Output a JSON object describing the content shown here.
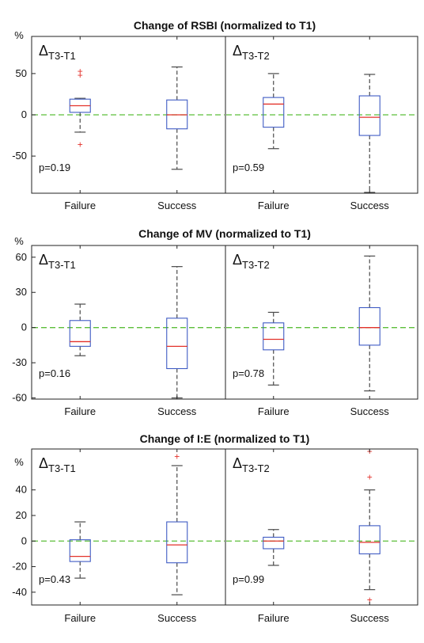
{
  "chart_data": [
    {
      "type": "box",
      "title": "Change of RSBI (normalized to T1)",
      "ylabel": "%",
      "ylim": [
        -95,
        95
      ],
      "yticks": [
        -50,
        0,
        50
      ],
      "ytick_labels": [
        "-50",
        "0",
        "50"
      ],
      "categories": [
        "Failure",
        "Success"
      ],
      "reference_line": 0,
      "panels": [
        {
          "label_main": "Δ",
          "label_sub": "T3-T1",
          "pvalue": "p=0.19",
          "boxes": [
            {
              "category": "Failure",
              "whisker_low": -21,
              "q1": 3,
              "median": 11,
              "q3": 19,
              "whisker_high": 20,
              "outliers": [
                -36,
                48,
                53
              ]
            },
            {
              "category": "Success",
              "whisker_low": -66,
              "q1": -17,
              "median": 0,
              "q3": 18,
              "whisker_high": 58,
              "outliers": []
            }
          ]
        },
        {
          "label_main": "Δ",
          "label_sub": "T3-T2",
          "pvalue": "p=0.59",
          "boxes": [
            {
              "category": "Failure",
              "whisker_low": -41,
              "q1": -15,
              "median": 13,
              "q3": 21,
              "whisker_high": 50,
              "outliers": []
            },
            {
              "category": "Success",
              "whisker_low": -94,
              "q1": -25,
              "median": -3,
              "q3": 23,
              "whisker_high": 49,
              "outliers": []
            }
          ]
        }
      ]
    },
    {
      "type": "box",
      "title": "Change of MV (normalized to T1)",
      "ylabel": "%",
      "ylim": [
        -61,
        70
      ],
      "yticks": [
        -60,
        -30,
        0,
        30,
        60
      ],
      "ytick_labels": [
        "-60",
        "-30",
        "0",
        "30",
        "60"
      ],
      "categories": [
        "Failure",
        "Success"
      ],
      "reference_line": 0,
      "panels": [
        {
          "label_main": "Δ",
          "label_sub": "T3-T1",
          "pvalue": "p=0.16",
          "boxes": [
            {
              "category": "Failure",
              "whisker_low": -24,
              "q1": -16,
              "median": -12,
              "q3": 6,
              "whisker_high": 20,
              "outliers": []
            },
            {
              "category": "Success",
              "whisker_low": -60,
              "q1": -35,
              "median": -16,
              "q3": 8,
              "whisker_high": 52,
              "outliers": []
            }
          ]
        },
        {
          "label_main": "Δ",
          "label_sub": "T3-T2",
          "pvalue": "p=0.78",
          "boxes": [
            {
              "category": "Failure",
              "whisker_low": -49,
              "q1": -19,
              "median": -10,
              "q3": 4,
              "whisker_high": 13,
              "outliers": []
            },
            {
              "category": "Success",
              "whisker_low": -54,
              "q1": -15,
              "median": 0,
              "q3": 17,
              "whisker_high": 61,
              "outliers": []
            }
          ]
        }
      ]
    },
    {
      "type": "box",
      "title": "Change of I:E (normalized to T1)",
      "ylabel": "%",
      "ylim": [
        -50,
        72
      ],
      "yticks": [
        -40,
        -20,
        0,
        20,
        40
      ],
      "ytick_labels": [
        "-40",
        "-20",
        "0",
        "20",
        "40"
      ],
      "categories": [
        "Failure",
        "Success"
      ],
      "reference_line": 0,
      "panels": [
        {
          "label_main": "Δ",
          "label_sub": "T3-T1",
          "pvalue": "p=0.43",
          "boxes": [
            {
              "category": "Failure",
              "whisker_low": -29,
              "q1": -16,
              "median": -12,
              "q3": 1,
              "whisker_high": 15,
              "outliers": []
            },
            {
              "category": "Success",
              "whisker_low": -42,
              "q1": -17,
              "median": -3,
              "q3": 15,
              "whisker_high": 59,
              "outliers": [
                66
              ]
            }
          ]
        },
        {
          "label_main": "Δ",
          "label_sub": "T3-T2",
          "pvalue": "p=0.99",
          "boxes": [
            {
              "category": "Failure",
              "whisker_low": -19,
              "q1": -6,
              "median": 0,
              "q3": 3,
              "whisker_high": 9,
              "outliers": []
            },
            {
              "category": "Success",
              "whisker_low": -38,
              "q1": -10,
              "median": -1,
              "q3": 12,
              "whisker_high": 40,
              "outliers": [
                -46,
                50,
                70
              ]
            }
          ]
        }
      ]
    }
  ],
  "colors": {
    "box": "#3f5bc4",
    "median": "#e3322b",
    "whisker": "#4a4a4a",
    "outlier": "#e3322b",
    "reference": "#5cbf3a",
    "axis": "#222222"
  }
}
